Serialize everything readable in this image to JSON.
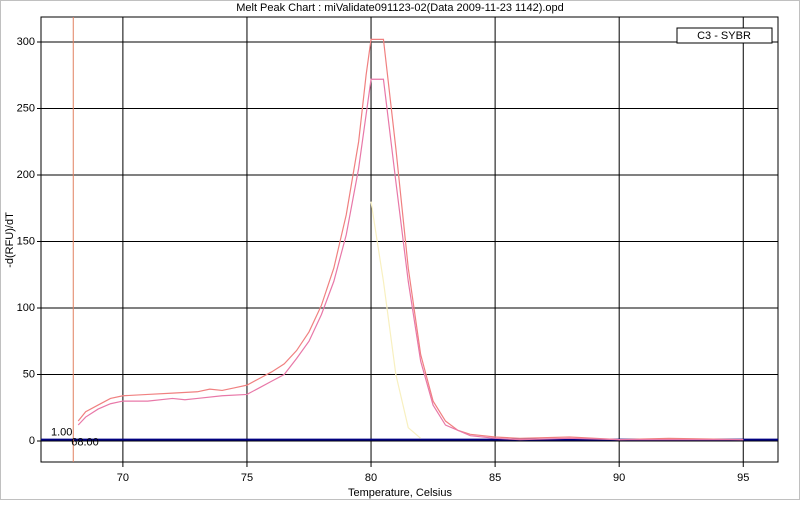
{
  "chart_data": {
    "type": "line",
    "title": "Melt Peak Chart : miValidate091123-02(Data 2009-11-23 1142).opd",
    "x_label": "Temperature, Celsius",
    "y_label": "-d(RFU)/dT",
    "legend_label": "C3 - SYBR",
    "xlim": [
      66.7,
      96.4
    ],
    "ylim": [
      -15.8,
      318.8
    ],
    "xticks": [
      70,
      75,
      80,
      85,
      90,
      95
    ],
    "yticks": [
      0,
      50,
      100,
      150,
      200,
      250,
      300
    ],
    "grid": true,
    "threshold": {
      "value": 1,
      "label": "1.00",
      "color": "#000080"
    },
    "marker": {
      "value": 68,
      "label": "68.00",
      "color": "#e08060"
    },
    "series": [
      {
        "color": "#f08080",
        "x": [
          68.2,
          68.5,
          69,
          69.5,
          70,
          71,
          72,
          73,
          73.5,
          74,
          74.5,
          75,
          75.5,
          76,
          76.5,
          77,
          77.5,
          78,
          78.5,
          79,
          79.5,
          79.8,
          80,
          80.5,
          81,
          81.5,
          82,
          82.5,
          83,
          83.5,
          84,
          85,
          86,
          88,
          90,
          92,
          95
        ],
        "values": [
          15,
          22,
          27,
          32,
          34,
          35,
          36,
          37,
          39,
          38,
          40,
          42,
          47,
          52,
          58,
          68,
          82,
          102,
          130,
          170,
          225,
          275,
          302,
          302,
          220,
          130,
          65,
          30,
          15,
          8,
          5,
          3,
          2,
          3,
          1,
          2,
          1
        ]
      },
      {
        "color": "#e878a8",
        "x": [
          68.2,
          68.5,
          69,
          69.5,
          70,
          71,
          72,
          72.5,
          73,
          74,
          75,
          75.5,
          76,
          76.5,
          77,
          77.5,
          78,
          78.5,
          79,
          79.5,
          80,
          80.5,
          81,
          81.5,
          82,
          82.5,
          83,
          84,
          85,
          86,
          88,
          90,
          92,
          95
        ],
        "values": [
          12,
          18,
          24,
          28,
          30,
          30,
          32,
          31,
          32,
          34,
          35,
          40,
          45,
          50,
          62,
          75,
          95,
          120,
          155,
          205,
          272,
          272,
          195,
          120,
          60,
          27,
          12,
          4,
          2,
          1,
          2,
          1,
          1,
          1
        ]
      },
      {
        "color": "#f8f0c0",
        "x": [
          80,
          80.5,
          81,
          81.5,
          82
        ],
        "values": [
          180,
          120,
          50,
          10,
          2
        ]
      }
    ]
  }
}
